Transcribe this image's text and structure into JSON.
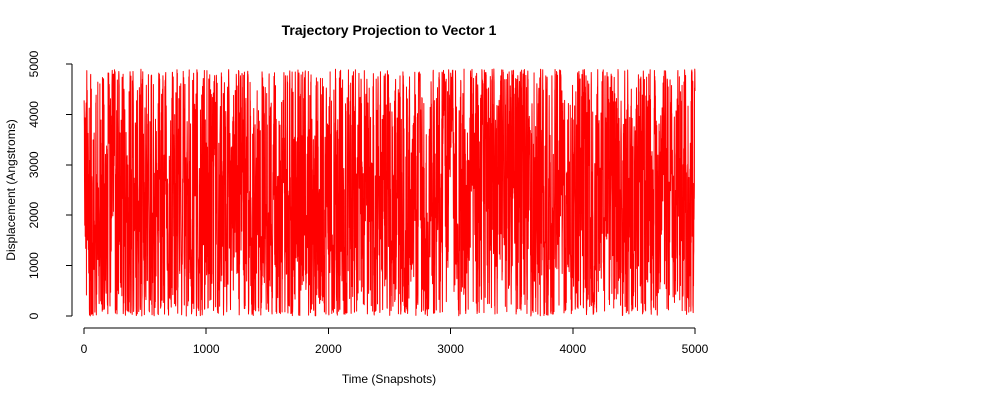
{
  "chart_data": {
    "type": "line",
    "title": "Trajectory Projection to Vector 1",
    "xlabel": "Time (Snapshots)",
    "ylabel": "Displacement (Angstroms)",
    "xlim": [
      0,
      5000
    ],
    "ylim": [
      0,
      5000
    ],
    "x_ticks": [
      0,
      1000,
      2000,
      3000,
      4000,
      5000
    ],
    "y_ticks": [
      0,
      1000,
      2000,
      3000,
      4000,
      5000
    ],
    "x_tick_labels": [
      "0",
      "1000",
      "2000",
      "3000",
      "4000",
      "5000"
    ],
    "y_tick_labels": [
      "0",
      "1000",
      "2000",
      "3000",
      "4000",
      "5000"
    ],
    "grid": false,
    "legend": "none",
    "series": [
      {
        "color": "#ff0000",
        "x_range": [
          1,
          5000
        ],
        "n_points": 5000,
        "value_min": 0,
        "value_max": 4900
      }
    ]
  }
}
